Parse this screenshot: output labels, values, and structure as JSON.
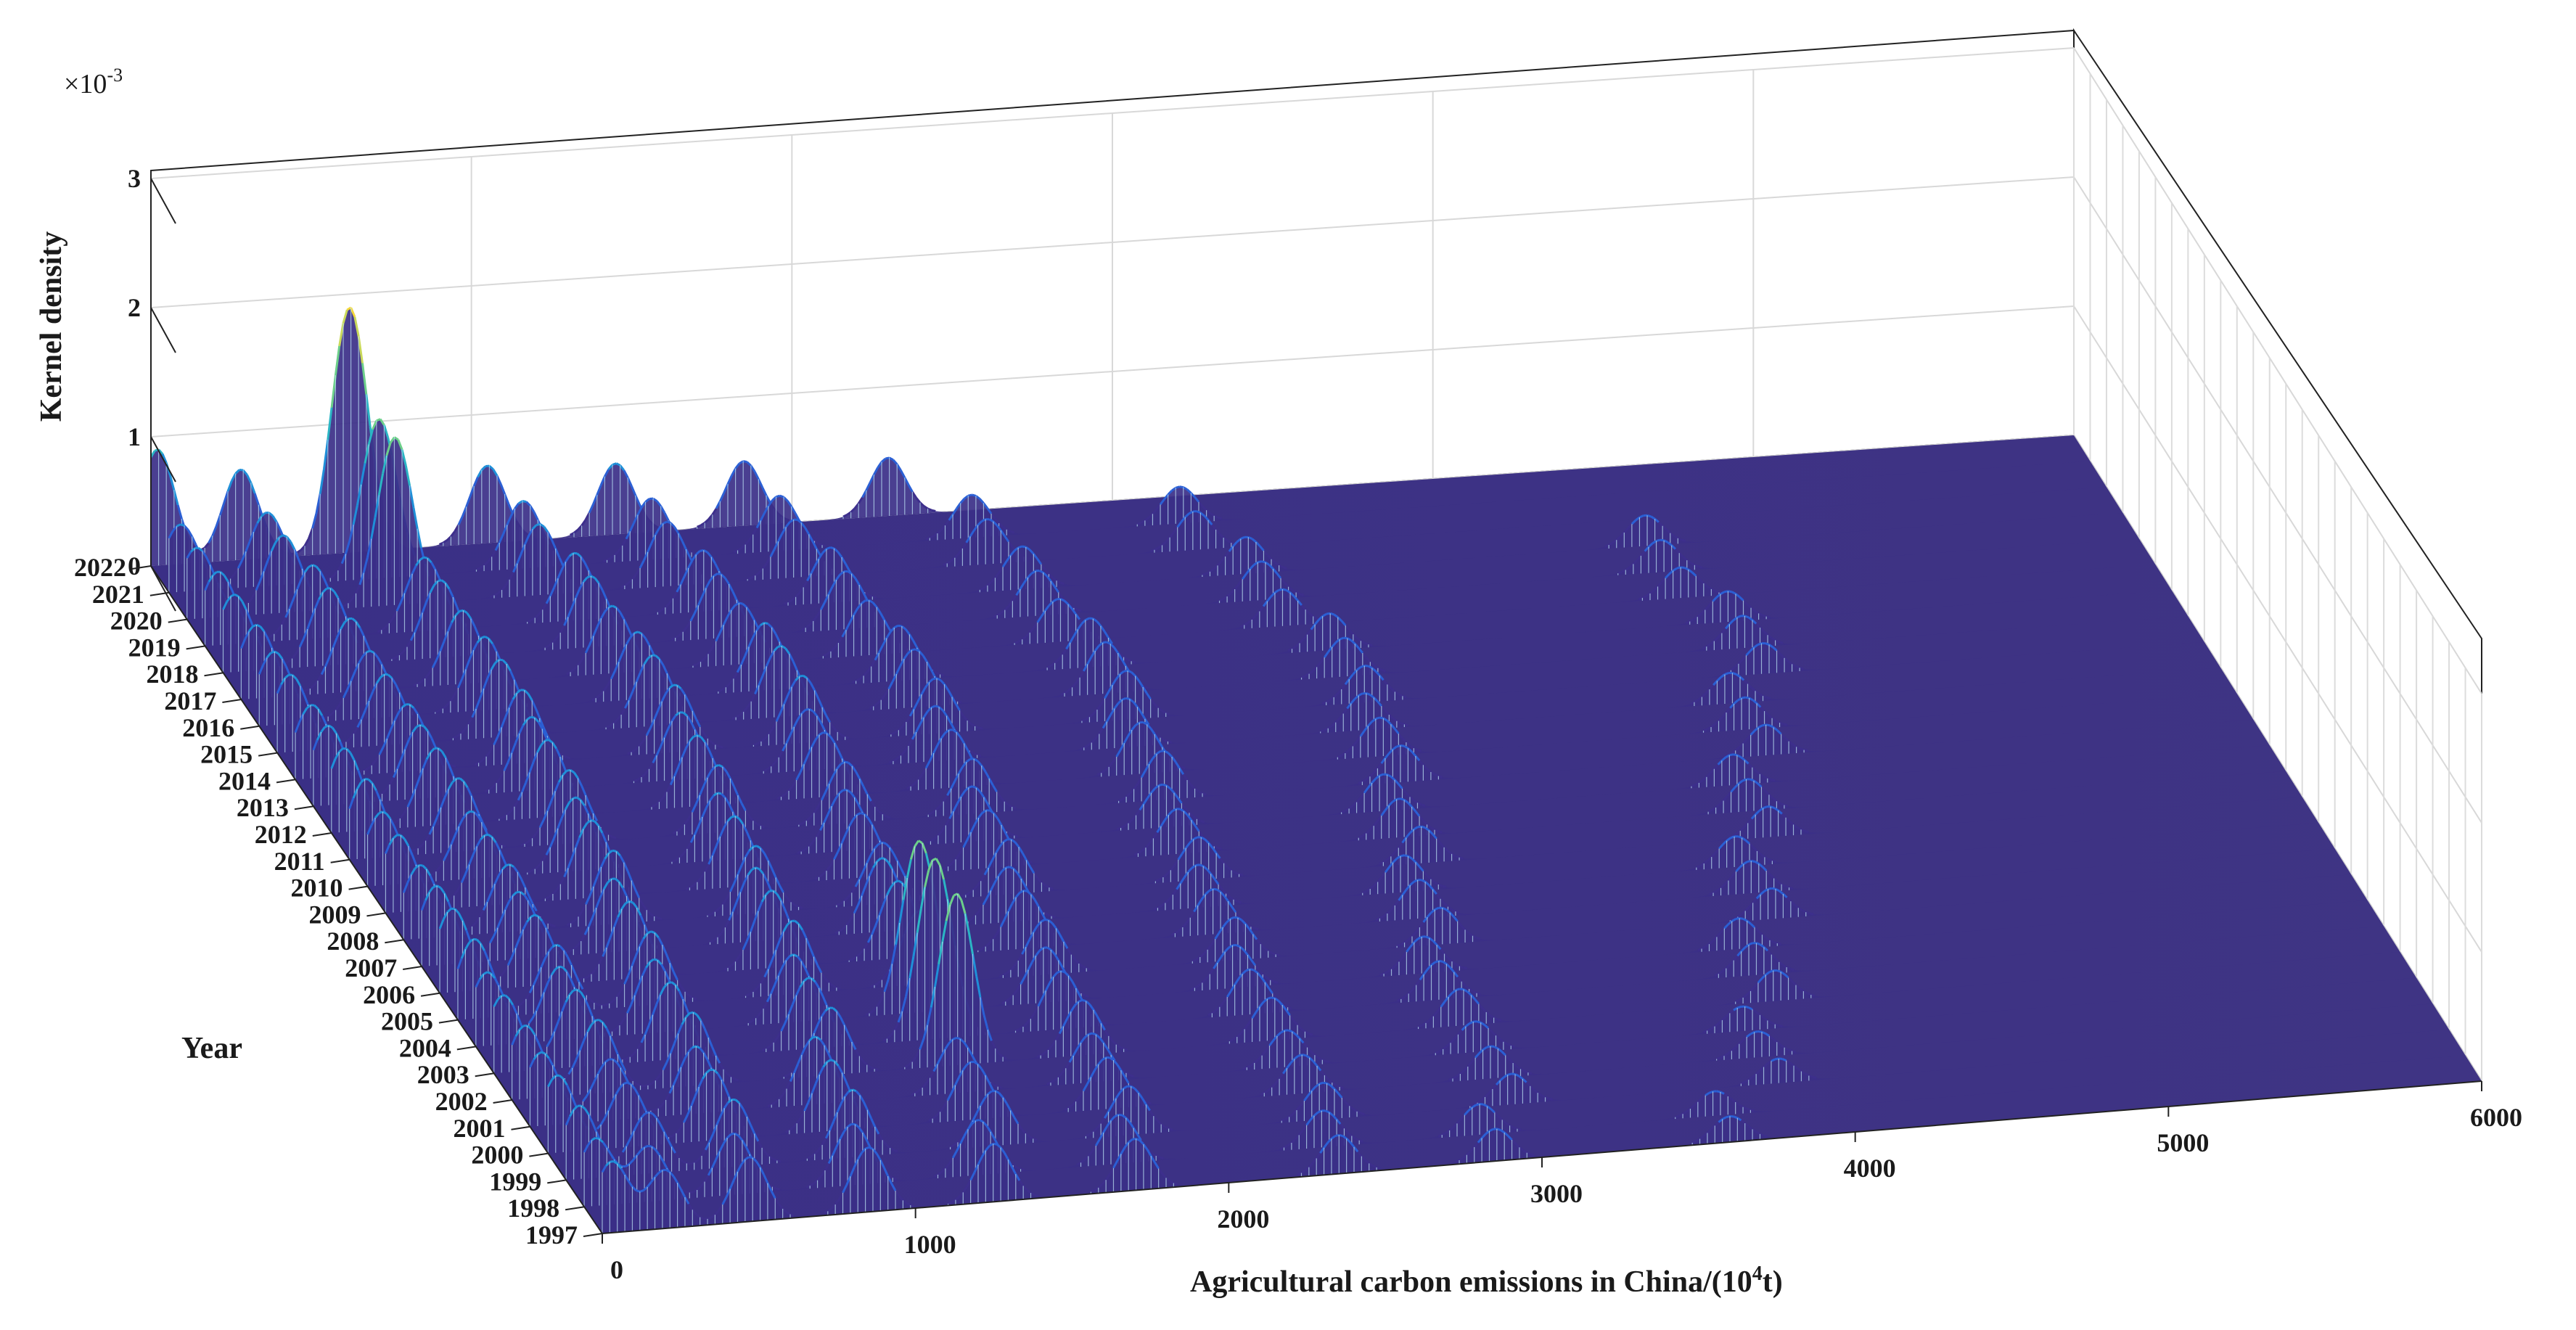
{
  "chart_data": {
    "type": "3d-kernel-density-surface",
    "title": "",
    "xlabel_text": "Agricultural carbon emissions in China/(10",
    "xlabel_sup": "4",
    "xlabel_end": "t)",
    "ylabel": "Year",
    "zlabel": "Kernel density",
    "z_multiplier_prefix": "×10",
    "z_multiplier_exp": "-3",
    "xlim": [
      0,
      6000
    ],
    "zlim": [
      0,
      3
    ],
    "x_ticks": [
      "0",
      "1000",
      "2000",
      "3000",
      "4000",
      "5000",
      "6000"
    ],
    "z_ticks": [
      "0",
      "1",
      "2",
      "3"
    ],
    "years": [
      "1997",
      "1998",
      "1999",
      "2000",
      "2001",
      "2002",
      "2003",
      "2004",
      "2005",
      "2006",
      "2007",
      "2008",
      "2009",
      "2010",
      "2011",
      "2012",
      "2013",
      "2014",
      "2015",
      "2016",
      "2017",
      "2018",
      "2019",
      "2020",
      "2021",
      "2022"
    ],
    "grid": true,
    "colormap": [
      "#3d2f8c",
      "#2b5fd4",
      "#1f8fd8",
      "#2bb5c4",
      "#6ccf8a",
      "#c9d95a",
      "#f3d83a"
    ],
    "series": [
      {
        "year": "1997",
        "peaks": [
          [
            30,
            0.55
          ],
          [
            200,
            0.45
          ],
          [
            470,
            0.5
          ],
          [
            850,
            0.5
          ],
          [
            1250,
            0.45
          ],
          [
            1700,
            0.4
          ],
          [
            2350,
            0.3
          ],
          [
            2850,
            0.25
          ],
          [
            3600,
            0.2
          ]
        ]
      },
      {
        "year": "2000",
        "peaks": [
          [
            30,
            0.6
          ],
          [
            250,
            0.5
          ],
          [
            520,
            0.55
          ],
          [
            900,
            0.55
          ],
          [
            1350,
            0.45
          ],
          [
            1780,
            0.4
          ],
          [
            2400,
            0.3
          ],
          [
            3000,
            0.25
          ],
          [
            3850,
            0.2
          ]
        ]
      },
      {
        "year": "2003",
        "peaks": [
          [
            30,
            0.6
          ],
          [
            260,
            0.6
          ],
          [
            560,
            0.6
          ],
          [
            1000,
            0.55
          ],
          [
            1400,
            1.4
          ],
          [
            1800,
            0.45
          ],
          [
            2400,
            0.35
          ],
          [
            3000,
            0.3
          ],
          [
            4000,
            0.25
          ]
        ]
      },
      {
        "year": "2006",
        "peaks": [
          [
            40,
            0.65
          ],
          [
            300,
            0.55
          ],
          [
            600,
            0.6
          ],
          [
            1050,
            0.6
          ],
          [
            1450,
            0.6
          ],
          [
            1850,
            0.45
          ],
          [
            2450,
            0.35
          ],
          [
            3100,
            0.3
          ],
          [
            4150,
            0.25
          ]
        ]
      },
      {
        "year": "2009",
        "peaks": [
          [
            40,
            0.6
          ],
          [
            320,
            0.55
          ],
          [
            650,
            0.6
          ],
          [
            1100,
            0.55
          ],
          [
            1500,
            0.5
          ],
          [
            1900,
            0.45
          ],
          [
            2500,
            0.35
          ],
          [
            3200,
            0.3
          ],
          [
            4300,
            0.25
          ]
        ]
      },
      {
        "year": "2012",
        "peaks": [
          [
            40,
            0.65
          ],
          [
            330,
            0.6
          ],
          [
            680,
            0.6
          ],
          [
            1150,
            0.55
          ],
          [
            1550,
            0.5
          ],
          [
            1950,
            0.45
          ],
          [
            2550,
            0.4
          ],
          [
            3300,
            0.3
          ],
          [
            4450,
            0.25
          ]
        ]
      },
      {
        "year": "2015",
        "peaks": [
          [
            40,
            0.6
          ],
          [
            340,
            0.55
          ],
          [
            700,
            0.6
          ],
          [
            1180,
            0.55
          ],
          [
            1580,
            0.55
          ],
          [
            2000,
            0.45
          ],
          [
            2600,
            0.4
          ],
          [
            3350,
            0.3
          ],
          [
            4600,
            0.25
          ]
        ]
      },
      {
        "year": "2018",
        "peaks": [
          [
            35,
            0.6
          ],
          [
            330,
            0.6
          ],
          [
            680,
            0.6
          ],
          [
            1150,
            0.55
          ],
          [
            1550,
            0.5
          ],
          [
            1950,
            0.45
          ],
          [
            2550,
            0.35
          ],
          [
            3250,
            0.3
          ],
          [
            4500,
            0.25
          ]
        ]
      },
      {
        "year": "2020",
        "peaks": [
          [
            30,
            0.55
          ],
          [
            300,
            0.6
          ],
          [
            650,
            1.3
          ],
          [
            1100,
            0.55
          ],
          [
            1500,
            0.5
          ],
          [
            1900,
            0.45
          ],
          [
            2500,
            0.35
          ],
          [
            3150,
            0.3
          ]
        ]
      },
      {
        "year": "2022",
        "peaks": [
          [
            20,
            0.9
          ],
          [
            280,
            0.7
          ],
          [
            620,
            1.9
          ],
          [
            1050,
            0.6
          ],
          [
            1450,
            0.55
          ],
          [
            1850,
            0.5
          ],
          [
            2300,
            0.45
          ]
        ]
      }
    ]
  }
}
